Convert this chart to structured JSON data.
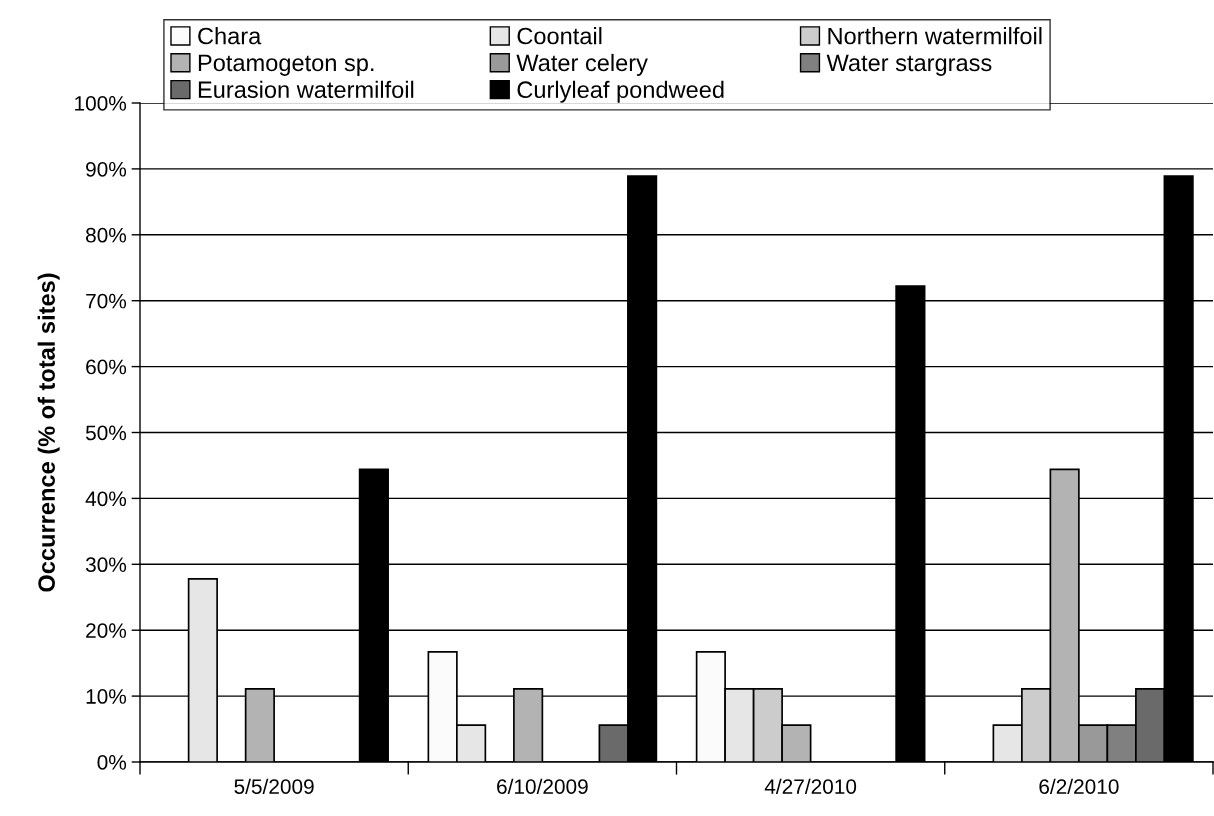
{
  "chart_data": {
    "type": "bar",
    "ylabel": "Occurrence (% of total sites)",
    "categories": [
      "5/5/2009",
      "6/10/2009",
      "4/27/2010",
      "6/2/2010"
    ],
    "series": [
      {
        "name": "Chara",
        "color": "#fbfbfb",
        "values": [
          null,
          16.7,
          16.7,
          null
        ]
      },
      {
        "name": "Coontail",
        "color": "#e6e6e6",
        "values": [
          27.8,
          5.6,
          11.1,
          5.6
        ]
      },
      {
        "name": "Northern watermilfoil",
        "color": "#cccccc",
        "values": [
          null,
          null,
          11.1,
          11.1
        ]
      },
      {
        "name": "Potamogeton sp.",
        "color": "#b3b3b3",
        "values": [
          11.1,
          11.1,
          5.6,
          44.4
        ]
      },
      {
        "name": "Water celery",
        "color": "#999999",
        "values": [
          null,
          null,
          null,
          5.6
        ]
      },
      {
        "name": "Water stargrass",
        "color": "#808080",
        "values": [
          null,
          null,
          null,
          5.6
        ]
      },
      {
        "name": "Eurasion watermilfoil",
        "color": "#6a6a6a",
        "values": [
          null,
          5.6,
          null,
          11.1
        ]
      },
      {
        "name": "Curlyleaf pondweed",
        "color": "#000000",
        "values": [
          44.4,
          88.9,
          72.2,
          88.9
        ]
      }
    ],
    "ylim": [
      0,
      100
    ],
    "yticks": [
      {
        "value": 0,
        "label": "0%"
      },
      {
        "value": 10,
        "label": "10%"
      },
      {
        "value": 20,
        "label": "20%"
      },
      {
        "value": 30,
        "label": "30%"
      },
      {
        "value": 40,
        "label": "40%"
      },
      {
        "value": 50,
        "label": "50%"
      },
      {
        "value": 60,
        "label": "60%"
      },
      {
        "value": 70,
        "label": "70%"
      },
      {
        "value": 80,
        "label": "80%"
      },
      {
        "value": 90,
        "label": "90%"
      },
      {
        "value": 100,
        "label": "100%"
      }
    ],
    "grid": "y",
    "legend": "top"
  }
}
